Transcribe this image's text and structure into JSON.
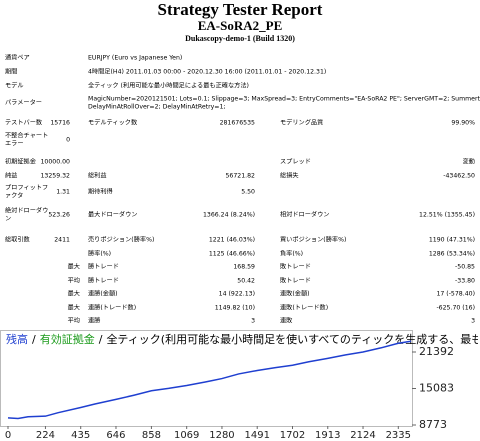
{
  "header": {
    "title": "Strategy Tester Report",
    "expert": "EA-SoRA2_PE",
    "server": "Dukascopy-demo-1 (Build 1320)"
  },
  "info": [
    {
      "label": "通貨ペア",
      "value": "EURJPY (Euro vs Japanese Yen)"
    },
    {
      "label": "期間",
      "value": "4時間足(H4) 2011.01.03 00:00 - 2020.12.30 16:00 (2011.01.01 - 2020.12.31)"
    },
    {
      "label": "モデル",
      "value": "全ティック (利用可能な最小時間足による最も正確な方法)"
    },
    {
      "label": "パラメーター",
      "lines": [
        "MagicNumber=2020121501; Lots=0.1; Slippage=3; MaxSpread=3; EntryComments=\"EA-SoRA2 PE\"; ServerGMT=2; Summertime=1;",
        "DelayMinAtRollOver=2; DelayMinAtRetry=1;"
      ]
    }
  ],
  "stats": [
    [
      "テストバー数",
      "15716",
      "モデルティック数",
      "281676535",
      "モデリング品質",
      "99.90%"
    ],
    [
      "不整合チャートエラー",
      "0",
      null,
      null,
      null,
      null
    ],
    [
      "初期証拠金",
      "10000.00",
      null,
      null,
      "スプレッド",
      "変動"
    ],
    [
      "純益",
      "13259.32",
      "総利益",
      "56721.82",
      "総損失",
      "-43462.50"
    ],
    [
      "プロフィットファクタ",
      "1.31",
      "期待利得",
      "5.50",
      null,
      null
    ],
    [
      "絶対ドローダウン",
      "523.26",
      "最大ドローダウン",
      "1366.24 (8.24%)",
      "相対ドローダウン",
      "12.51% (1355.45)"
    ],
    [
      "総取引数",
      "2411",
      "売りポジション(勝率%)",
      "1221 (46.03%)",
      "買いポジション(勝率%)",
      "1190 (47.31%)"
    ],
    [
      null,
      null,
      "勝率(%)",
      "1125 (46.66%)",
      "負率(%)",
      "1286 (53.34%)"
    ],
    [
      null,
      "最大",
      "勝トレード",
      "168.59",
      "敗トレード",
      "-50.85"
    ],
    [
      null,
      "平均",
      "勝トレード",
      "50.42",
      "敗トレード",
      "-33.80"
    ],
    [
      null,
      "最大",
      "連勝(金額)",
      "14 (922.13)",
      "連敗(金額)",
      "17 (-578.40)"
    ],
    [
      null,
      "最大",
      "連勝(トレード数)",
      "1149.82 (10)",
      "連敗(トレード数)",
      "-625.70 (16)"
    ],
    [
      null,
      "平均",
      "連勝",
      "3",
      "連敗",
      "3"
    ]
  ],
  "chart_data": {
    "type": "line",
    "separator": "/",
    "legend_note": "全ティック(利用可能な最小時間足を使いすべてのティックを生成する、最も",
    "legend_extra": {
      "name": "有効証拠金",
      "color": "#1a9a1a"
    },
    "x": [
      0,
      60,
      120,
      224,
      300,
      435,
      520,
      646,
      750,
      858,
      960,
      1069,
      1180,
      1280,
      1380,
      1491,
      1600,
      1702,
      1800,
      1913,
      2020,
      2124,
      2230,
      2335,
      2411
    ],
    "series": [
      {
        "name": "残高",
        "color": "#1f3fd0",
        "values": [
          10000,
          9900,
          10200,
          10300,
          10900,
          11800,
          12400,
          13200,
          13900,
          14700,
          15100,
          15600,
          16200,
          16800,
          17600,
          18200,
          18700,
          19100,
          19700,
          20300,
          20900,
          21400,
          22100,
          22900,
          23259
        ]
      }
    ],
    "xlim": [
      0,
      2411
    ],
    "ylim": [
      8773,
      24333
    ],
    "xticks": [
      0,
      224,
      435,
      646,
      858,
      1069,
      1280,
      1491,
      1702,
      1913,
      2124,
      2335
    ],
    "yticks": [
      8773,
      15083,
      21392
    ]
  }
}
